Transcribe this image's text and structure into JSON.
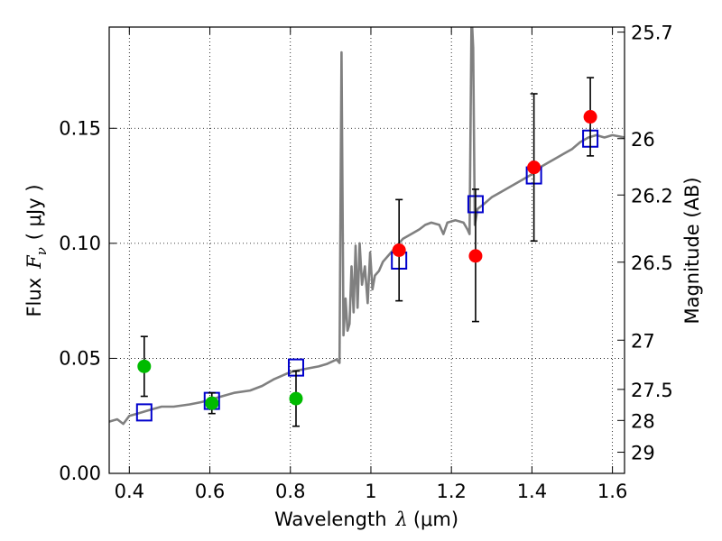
{
  "chart_data": {
    "type": "scatter",
    "xlabel": "Wavelength",
    "xlabel_symbol": "λ",
    "xlabel_unit": "(μm)",
    "ylabel": "Flux",
    "ylabel_symbol": "F",
    "ylabel_subscript": "ν",
    "ylabel_unit": "( μJy )",
    "y2label": "Magnitude (AB)",
    "xlim": [
      0.35,
      1.63
    ],
    "ylim": [
      0.0,
      0.194
    ],
    "grid": true,
    "x_ticks": [
      0.4,
      0.6,
      0.8,
      1.0,
      1.2,
      1.4,
      1.6
    ],
    "x_tick_labels": [
      "0.4",
      "0.6",
      "0.8",
      "1",
      "1.2",
      "1.4",
      "1.6"
    ],
    "y_ticks": [
      0.0,
      0.05,
      0.1,
      0.15
    ],
    "y_tick_labels": [
      "0.00",
      "0.05",
      "0.10",
      "0.15"
    ],
    "y2_ticks": [
      {
        "label": "25.7",
        "flux": 0.1918
      },
      {
        "label": "26",
        "flux": 0.1455
      },
      {
        "label": "26.2",
        "flux": 0.121
      },
      {
        "label": "26.5",
        "flux": 0.0918
      },
      {
        "label": "27",
        "flux": 0.0579
      },
      {
        "label": "27.5",
        "flux": 0.0365
      },
      {
        "label": "28",
        "flux": 0.023
      },
      {
        "label": "29",
        "flux": 0.0092
      }
    ],
    "series": [
      {
        "kind": "line",
        "color": "#808080",
        "points": [
          [
            0.35,
            0.0225
          ],
          [
            0.37,
            0.0235
          ],
          [
            0.385,
            0.0215
          ],
          [
            0.4,
            0.025
          ],
          [
            0.42,
            0.026
          ],
          [
            0.45,
            0.0275
          ],
          [
            0.48,
            0.029
          ],
          [
            0.51,
            0.029
          ],
          [
            0.55,
            0.03
          ],
          [
            0.58,
            0.031
          ],
          [
            0.6,
            0.032
          ],
          [
            0.63,
            0.0335
          ],
          [
            0.66,
            0.035
          ],
          [
            0.7,
            0.036
          ],
          [
            0.73,
            0.038
          ],
          [
            0.76,
            0.041
          ],
          [
            0.8,
            0.044
          ],
          [
            0.84,
            0.0455
          ],
          [
            0.87,
            0.0465
          ],
          [
            0.89,
            0.0475
          ],
          [
            0.915,
            0.0495
          ],
          [
            0.922,
            0.048
          ],
          [
            0.927,
            0.183
          ],
          [
            0.932,
            0.06
          ],
          [
            0.937,
            0.076
          ],
          [
            0.942,
            0.062
          ],
          [
            0.947,
            0.065
          ],
          [
            0.952,
            0.09
          ],
          [
            0.957,
            0.07
          ],
          [
            0.962,
            0.099
          ],
          [
            0.967,
            0.072
          ],
          [
            0.972,
            0.1
          ],
          [
            0.978,
            0.082
          ],
          [
            0.985,
            0.09
          ],
          [
            0.992,
            0.074
          ],
          [
            0.998,
            0.096
          ],
          [
            1.004,
            0.08
          ],
          [
            1.01,
            0.086
          ],
          [
            1.02,
            0.088
          ],
          [
            1.03,
            0.092
          ],
          [
            1.045,
            0.095
          ],
          [
            1.06,
            0.098
          ],
          [
            1.08,
            0.102
          ],
          [
            1.1,
            0.104
          ],
          [
            1.12,
            0.106
          ],
          [
            1.135,
            0.108
          ],
          [
            1.15,
            0.109
          ],
          [
            1.17,
            0.108
          ],
          [
            1.18,
            0.104
          ],
          [
            1.19,
            0.109
          ],
          [
            1.21,
            0.11
          ],
          [
            1.23,
            0.109
          ],
          [
            1.24,
            0.106
          ],
          [
            1.245,
            0.104
          ],
          [
            1.25,
            0.2
          ],
          [
            1.254,
            0.185
          ],
          [
            1.258,
            0.108
          ],
          [
            1.265,
            0.115
          ],
          [
            1.28,
            0.117
          ],
          [
            1.3,
            0.12
          ],
          [
            1.32,
            0.122
          ],
          [
            1.34,
            0.124
          ],
          [
            1.36,
            0.126
          ],
          [
            1.38,
            0.128
          ],
          [
            1.4,
            0.13
          ],
          [
            1.42,
            0.133
          ],
          [
            1.44,
            0.135
          ],
          [
            1.46,
            0.137
          ],
          [
            1.48,
            0.139
          ],
          [
            1.5,
            0.141
          ],
          [
            1.52,
            0.144
          ],
          [
            1.54,
            0.146
          ],
          [
            1.56,
            0.147
          ],
          [
            1.58,
            0.146
          ],
          [
            1.6,
            0.147
          ],
          [
            1.63,
            0.146
          ]
        ]
      },
      {
        "kind": "markers",
        "marker": "square",
        "color": "#0000cc",
        "points": [
          [
            0.437,
            0.0265
          ],
          [
            0.605,
            0.0315
          ],
          [
            0.814,
            0.046
          ],
          [
            1.07,
            0.0925
          ],
          [
            1.26,
            0.117
          ],
          [
            1.405,
            0.1295
          ],
          [
            1.545,
            0.1455
          ]
        ]
      },
      {
        "kind": "errorbar",
        "marker": "circle",
        "color": "#00bb00",
        "points": [
          {
            "x": 0.437,
            "y": 0.0465,
            "yerr_low": 0.013,
            "yerr_high": 0.013
          },
          {
            "x": 0.605,
            "y": 0.0305,
            "yerr_low": 0.0045,
            "yerr_high": 0.0045
          },
          {
            "x": 0.814,
            "y": 0.0325,
            "yerr_low": 0.012,
            "yerr_high": 0.012
          }
        ]
      },
      {
        "kind": "errorbar",
        "marker": "circle",
        "color": "#ff0000",
        "points": [
          {
            "x": 1.07,
            "y": 0.097,
            "yerr_low": 0.022,
            "yerr_high": 0.022
          },
          {
            "x": 1.26,
            "y": 0.0945,
            "yerr_low": 0.0285,
            "yerr_high": 0.029
          },
          {
            "x": 1.405,
            "y": 0.133,
            "yerr_low": 0.032,
            "yerr_high": 0.032
          },
          {
            "x": 1.545,
            "y": 0.155,
            "yerr_low": 0.017,
            "yerr_high": 0.017
          }
        ]
      }
    ]
  }
}
